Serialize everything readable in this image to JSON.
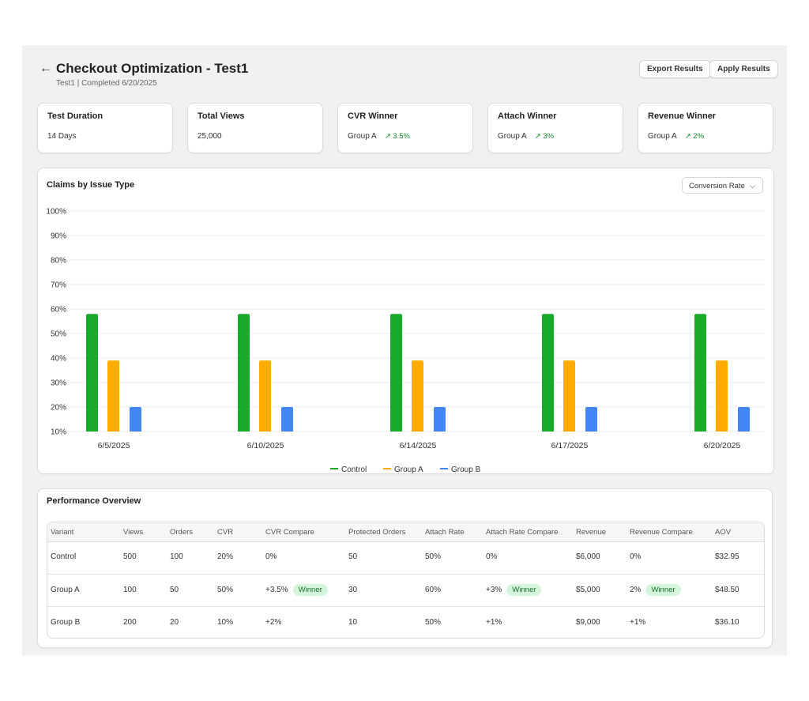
{
  "header": {
    "title": "Checkout Optimization - Test1",
    "test_name": "Test1",
    "separator": "|",
    "status": "Completed 6/20/2025",
    "export_label": "Export Results",
    "apply_label": "Apply Results"
  },
  "stats": [
    {
      "label": "Test Duration",
      "value": "14 Days",
      "delta": ""
    },
    {
      "label": "Total Views",
      "value": "25,000",
      "delta": ""
    },
    {
      "label": "CVR Winner",
      "value": "Group A",
      "delta": "↗ 3.5%"
    },
    {
      "label": "Attach Winner",
      "value": "Group A",
      "delta": "↗ 3%"
    },
    {
      "label": "Revenue Winner",
      "value": "Group A",
      "delta": "↗ 2%"
    }
  ],
  "chart_section": {
    "title": "Claims by Issue Type",
    "metric_selected": "Conversion Rate"
  },
  "chart_data": {
    "type": "bar",
    "title": "Claims by Issue Type",
    "categories": [
      "6/5/2025",
      "6/10/2025",
      "6/14/2025",
      "6/17/2025",
      "6/20/2025"
    ],
    "series": [
      {
        "name": "Control",
        "color": "#1aaa2a",
        "values": [
          58,
          58,
          58,
          58,
          58
        ]
      },
      {
        "name": "Group A",
        "color": "#ffab00",
        "values": [
          39,
          39,
          39,
          39,
          39
        ]
      },
      {
        "name": "Group B",
        "color": "#4285f4",
        "values": [
          20,
          20,
          20,
          20,
          20
        ]
      }
    ],
    "yticks": [
      "10%",
      "20%",
      "30%",
      "40%",
      "50%",
      "60%",
      "70%",
      "80%",
      "90%",
      "100%"
    ],
    "ylim": [
      10,
      100
    ],
    "grid": true,
    "legend_position": "bottom"
  },
  "performance": {
    "title": "Performance Overview",
    "columns": [
      "Variant",
      "Views",
      "Orders",
      "CVR",
      "CVR Compare",
      "Protected Orders",
      "Attach Rate",
      "Attach Rate Compare",
      "Revenue",
      "Revenue Compare",
      "AOV"
    ],
    "winner_label": "Winner",
    "rows": [
      {
        "variant": "Control",
        "views": "500",
        "orders": "100",
        "cvr": "20%",
        "cvr_compare": "0%",
        "cvr_winner": false,
        "protected_orders": "50",
        "attach_rate": "50%",
        "attach_compare": "0%",
        "attach_winner": false,
        "revenue": "$6,000",
        "revenue_compare": "0%",
        "revenue_winner": false,
        "aov": "$32.95"
      },
      {
        "variant": "Group A",
        "views": "100",
        "orders": "50",
        "cvr": "50%",
        "cvr_compare": "+3.5%",
        "cvr_winner": true,
        "protected_orders": "30",
        "attach_rate": "60%",
        "attach_compare": "+3%",
        "attach_winner": true,
        "revenue": "$5,000",
        "revenue_compare": "2%",
        "revenue_winner": true,
        "aov": "$48.50"
      },
      {
        "variant": "Group B",
        "views": "200",
        "orders": "20",
        "cvr": "10%",
        "cvr_compare": "+2%",
        "cvr_winner": false,
        "protected_orders": "10",
        "attach_rate": "50%",
        "attach_compare": "+1%",
        "attach_winner": false,
        "revenue": "$9,000",
        "revenue_compare": "+1%",
        "revenue_winner": false,
        "aov": "$36.10"
      }
    ]
  }
}
